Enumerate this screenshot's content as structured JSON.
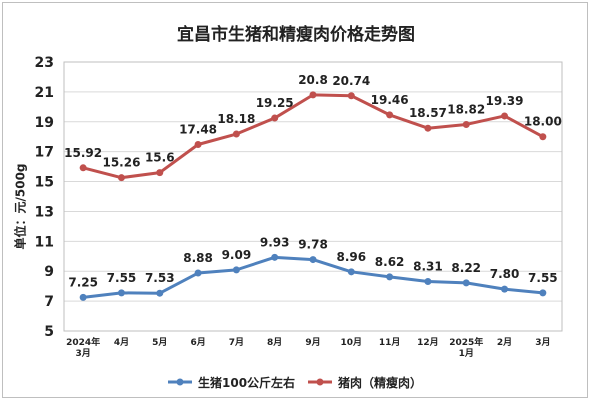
{
  "chart_data": {
    "type": "line",
    "title": "宜昌市生猪和精瘦肉价格走势图",
    "ylabel": "单位：元/500g",
    "xlabel": "",
    "ylim": [
      5,
      23
    ],
    "yticks": [
      5,
      7,
      9,
      11,
      13,
      15,
      17,
      19,
      21,
      23
    ],
    "grid": true,
    "legend": "bottom",
    "categories": [
      [
        "2024年",
        "3月"
      ],
      [
        "4月"
      ],
      [
        "5月"
      ],
      [
        "6月"
      ],
      [
        "7月"
      ],
      [
        "8月"
      ],
      [
        "9月"
      ],
      [
        "10月"
      ],
      [
        "11月"
      ],
      [
        "12月"
      ],
      [
        "2025年",
        "1月"
      ],
      [
        "2月"
      ],
      [
        "3月"
      ]
    ],
    "series": [
      {
        "name": "生猪100公斤左右",
        "color": "#4f81bd",
        "values": [
          7.25,
          7.55,
          7.53,
          8.88,
          9.09,
          9.93,
          9.78,
          8.96,
          8.62,
          8.31,
          8.22,
          7.8,
          7.55
        ],
        "labels": [
          "7.25",
          "7.55",
          "7.53",
          "8.88",
          "9.09",
          "9.93",
          "9.78",
          "8.96",
          "8.62",
          "8.31",
          "8.22",
          "7.80",
          "7.55"
        ]
      },
      {
        "name": "猪肉（精瘦肉）",
        "color": "#c0504d",
        "values": [
          15.92,
          15.26,
          15.6,
          17.48,
          18.18,
          19.25,
          20.8,
          20.74,
          19.46,
          18.57,
          18.82,
          19.39,
          18.0
        ],
        "labels": [
          "15.92",
          "15.26",
          "15.6",
          "17.48",
          "18.18",
          "19.25",
          "20.8",
          "20.74",
          "19.46",
          "18.57",
          "18.82",
          "19.39",
          "18.00"
        ]
      }
    ]
  }
}
